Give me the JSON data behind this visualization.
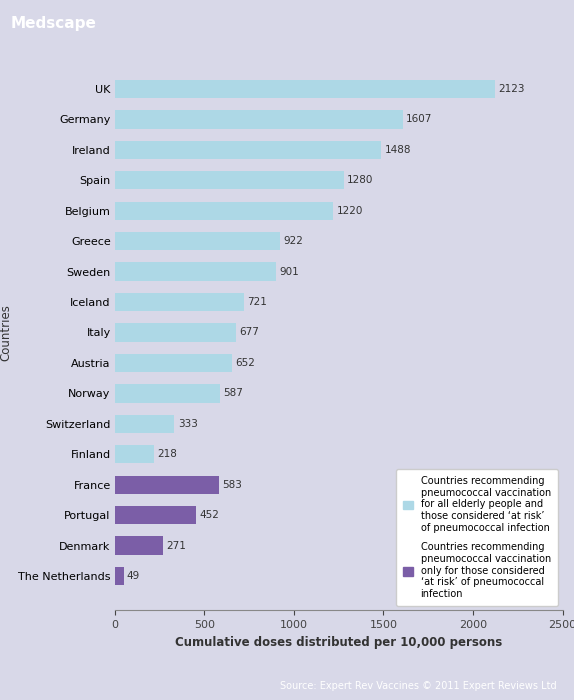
{
  "countries": [
    "UK",
    "Germany",
    "Ireland",
    "Spain",
    "Belgium",
    "Greece",
    "Sweden",
    "Iceland",
    "Italy",
    "Austria",
    "Norway",
    "Switzerland",
    "Finland",
    "France",
    "Portugal",
    "Denmark",
    "The Netherlands"
  ],
  "values": [
    2123,
    1607,
    1488,
    1280,
    1220,
    922,
    901,
    721,
    677,
    652,
    587,
    333,
    218,
    583,
    452,
    271,
    49
  ],
  "colors": [
    "#add8e6",
    "#add8e6",
    "#add8e6",
    "#add8e6",
    "#add8e6",
    "#add8e6",
    "#add8e6",
    "#add8e6",
    "#add8e6",
    "#add8e6",
    "#add8e6",
    "#add8e6",
    "#add8e6",
    "#7b5ea7",
    "#7b5ea7",
    "#7b5ea7",
    "#7b5ea7"
  ],
  "light_blue": "#add8e6",
  "purple": "#7b5ea7",
  "xlabel": "Cumulative doses distributed per 10,000 persons",
  "ylabel": "Countries",
  "xlim": [
    0,
    2500
  ],
  "xticks": [
    0,
    500,
    1000,
    1500,
    2000,
    2500
  ],
  "legend_light_blue": "Countries recommending\npneumococcal vaccination\nfor all elderly people and\nthose considered ‘at risk’\nof pneumococcal infection",
  "legend_purple": "Countries recommending\npneumococcal vaccination\nonly for those considered\n‘at risk’ of pneumococcal\ninfection",
  "title": "Medscape",
  "source": "Source: Expert Rev Vaccines © 2011 Expert Reviews Ltd",
  "bg_color": "#d8d8e8",
  "header_color": "#2077a8",
  "bar_height": 0.6
}
